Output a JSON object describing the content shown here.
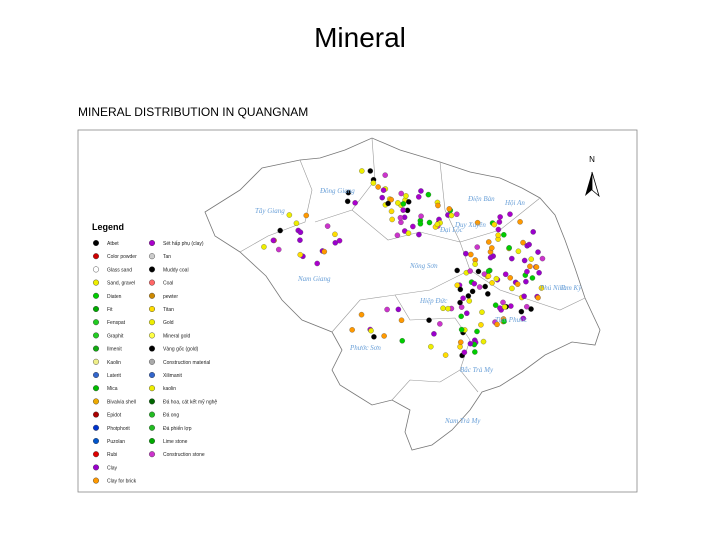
{
  "header": {
    "title": "Mineral",
    "subtitle": "MINERAL DISTRIBUTION IN QUANGNAM"
  },
  "map": {
    "north": "N",
    "legend_title": "Legend",
    "legend_col1": [
      "Atbet",
      "Color powder",
      "Glass sand",
      "Sand, gravel",
      "Diaten",
      "Fit",
      "Fenspat",
      "Graphit",
      "Ilmenit",
      "Kaolin",
      "Laterit",
      "Mica",
      "Bivalvia shell",
      "Epidot",
      "Photphorit",
      "Puzolan",
      "Rubi",
      "Clay",
      "Clay for brick"
    ],
    "legend_col2": [
      "Sét hấp phụ (clay)",
      "Tan",
      "Muddy coal",
      "Coal",
      "pewter",
      "Titan",
      "Gold",
      "Mineral gold",
      "Vàng gốc (gold)",
      "Construction material",
      "Xilimanit",
      "kaolin",
      "Đá hoa, cát kết mỹ nghệ",
      "Đá ong",
      "Đá phiến lợp",
      "Lime stone",
      "Construction stone"
    ],
    "districts": [
      {
        "label": "Tây Giang"
      },
      {
        "label": "Đông Giang"
      },
      {
        "label": "Nam Giang"
      },
      {
        "label": "Nông Sơn"
      },
      {
        "label": "Đại Lộc"
      },
      {
        "label": "Điện Bàn"
      },
      {
        "label": "Hội An"
      },
      {
        "label": "Duy Xuyên"
      },
      {
        "label": "Hiệp Đức"
      },
      {
        "label": "Phước Sơn"
      },
      {
        "label": "Tiên Phước"
      },
      {
        "label": "Phú Ninh"
      },
      {
        "label": "Tam Kỳ"
      },
      {
        "label": "Bắc Trà My"
      },
      {
        "label": "Nam Trà My"
      }
    ]
  }
}
